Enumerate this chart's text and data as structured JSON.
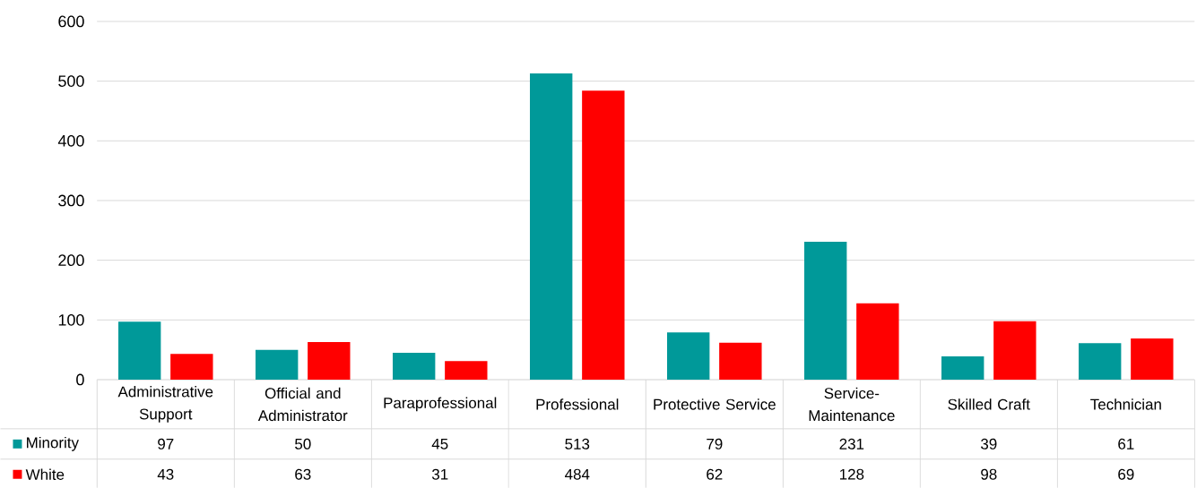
{
  "chart_data": {
    "type": "bar",
    "categories": [
      "Administrative Support",
      "Official and Administrator",
      "Paraprofessional",
      "Professional",
      "Protective Service",
      "Service-Maintenance",
      "Skilled Craft",
      "Technician"
    ],
    "series": [
      {
        "name": "Minority",
        "color": "#009999",
        "values": [
          97,
          50,
          45,
          513,
          79,
          231,
          39,
          61
        ]
      },
      {
        "name": "White",
        "color": "#ff0000",
        "values": [
          43,
          63,
          31,
          484,
          62,
          128,
          98,
          69
        ]
      }
    ],
    "ylim": [
      0,
      600
    ],
    "yticks": [
      0,
      100,
      200,
      300,
      400,
      500,
      600
    ],
    "grid": "y",
    "legend": "bottom",
    "data_labels": true
  }
}
